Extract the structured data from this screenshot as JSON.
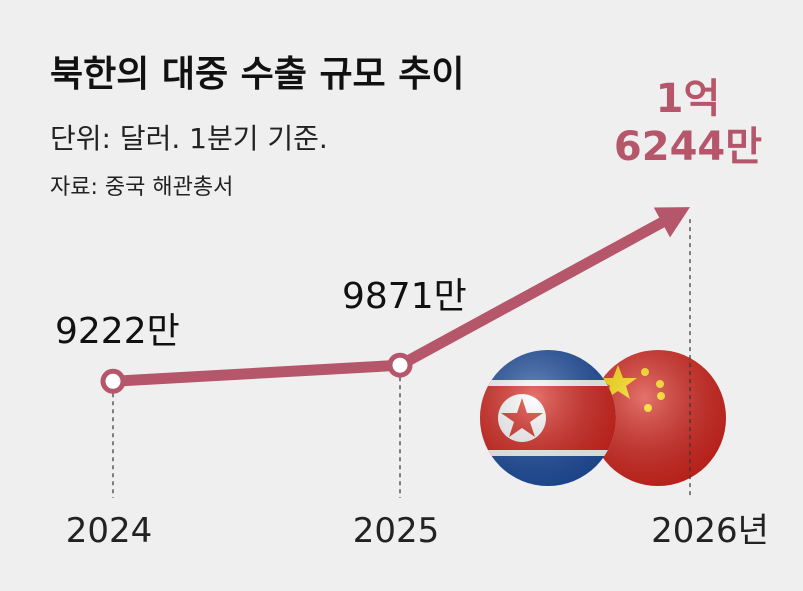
{
  "chart_data": {
    "type": "line",
    "title": "북한의 대중 수출 규모 추이",
    "subtitle": "단위: 달러. 1분기 기준.",
    "source": "자료: 중국 해관총서",
    "categories": [
      "2024",
      "2025",
      "2026년"
    ],
    "values": [
      9222,
      9871,
      16244
    ],
    "value_labels": [
      "9222만",
      "9871만",
      "1억 6244만"
    ],
    "color": "#b5566a"
  }
}
